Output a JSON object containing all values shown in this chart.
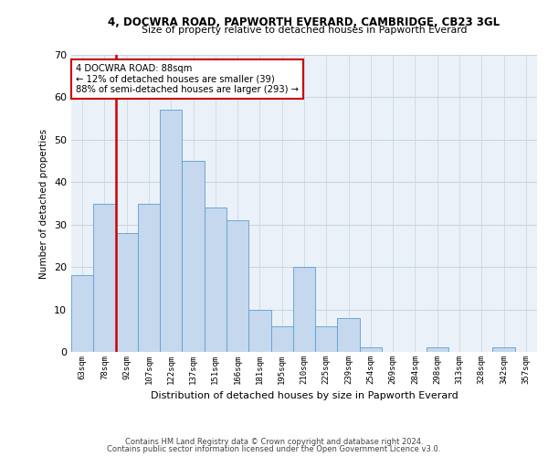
{
  "title1": "4, DOCWRA ROAD, PAPWORTH EVERARD, CAMBRIDGE, CB23 3GL",
  "title2": "Size of property relative to detached houses in Papworth Everard",
  "xlabel": "Distribution of detached houses by size in Papworth Everard",
  "ylabel": "Number of detached properties",
  "footer1": "Contains HM Land Registry data © Crown copyright and database right 2024.",
  "footer2": "Contains public sector information licensed under the Open Government Licence v3.0.",
  "annotation_line1": "4 DOCWRA ROAD: 88sqm",
  "annotation_line2": "← 12% of detached houses are smaller (39)",
  "annotation_line3": "88% of semi-detached houses are larger (293) →",
  "bar_labels": [
    "63sqm",
    "78sqm",
    "92sqm",
    "107sqm",
    "122sqm",
    "137sqm",
    "151sqm",
    "166sqm",
    "181sqm",
    "195sqm",
    "210sqm",
    "225sqm",
    "239sqm",
    "254sqm",
    "269sqm",
    "284sqm",
    "298sqm",
    "313sqm",
    "328sqm",
    "342sqm",
    "357sqm"
  ],
  "bar_values": [
    18,
    35,
    28,
    35,
    57,
    45,
    34,
    31,
    10,
    6,
    20,
    6,
    8,
    1,
    0,
    0,
    1,
    0,
    0,
    1,
    0
  ],
  "bar_color": "#c5d8ed",
  "bar_edge_color": "#5a9fd4",
  "vline_color": "#cc0000",
  "vline_x": 1.5,
  "ylim": [
    0,
    70
  ],
  "yticks": [
    0,
    10,
    20,
    30,
    40,
    50,
    60,
    70
  ],
  "bg_color": "#eaf1f8",
  "annotation_box_color": "#ffffff",
  "annotation_box_edge": "#cc0000",
  "fig_width": 6.0,
  "fig_height": 5.0,
  "dpi": 100
}
